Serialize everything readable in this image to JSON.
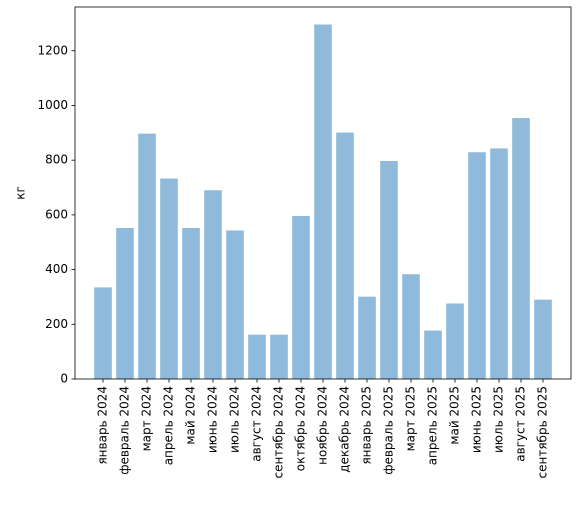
{
  "chart_data": {
    "type": "bar",
    "categories": [
      "январь 2024",
      "февраль 2024",
      "март 2024",
      "апрель 2024",
      "май 2024",
      "июнь 2024",
      "июль 2024",
      "август 2024",
      "сентябрь 2024",
      "октябрь 2024",
      "ноябрь 2024",
      "декабрь 2024",
      "январь 2025",
      "февраль 2025",
      "март 2025",
      "апрель 2025",
      "май 2025",
      "июнь 2025",
      "июль 2025",
      "август 2025",
      "сентябрь 2025"
    ],
    "values": [
      335,
      552,
      897,
      733,
      552,
      690,
      543,
      162,
      162,
      596,
      1296,
      901,
      301,
      797,
      383,
      177,
      276,
      829,
      843,
      954,
      290
    ],
    "title": "",
    "xlabel": "",
    "ylabel": "кг",
    "ylim": [
      0,
      1360
    ],
    "yticks": [
      0,
      200,
      400,
      600,
      800,
      1000,
      1200
    ],
    "bar_color": "#8fbadb",
    "grid": false
  }
}
